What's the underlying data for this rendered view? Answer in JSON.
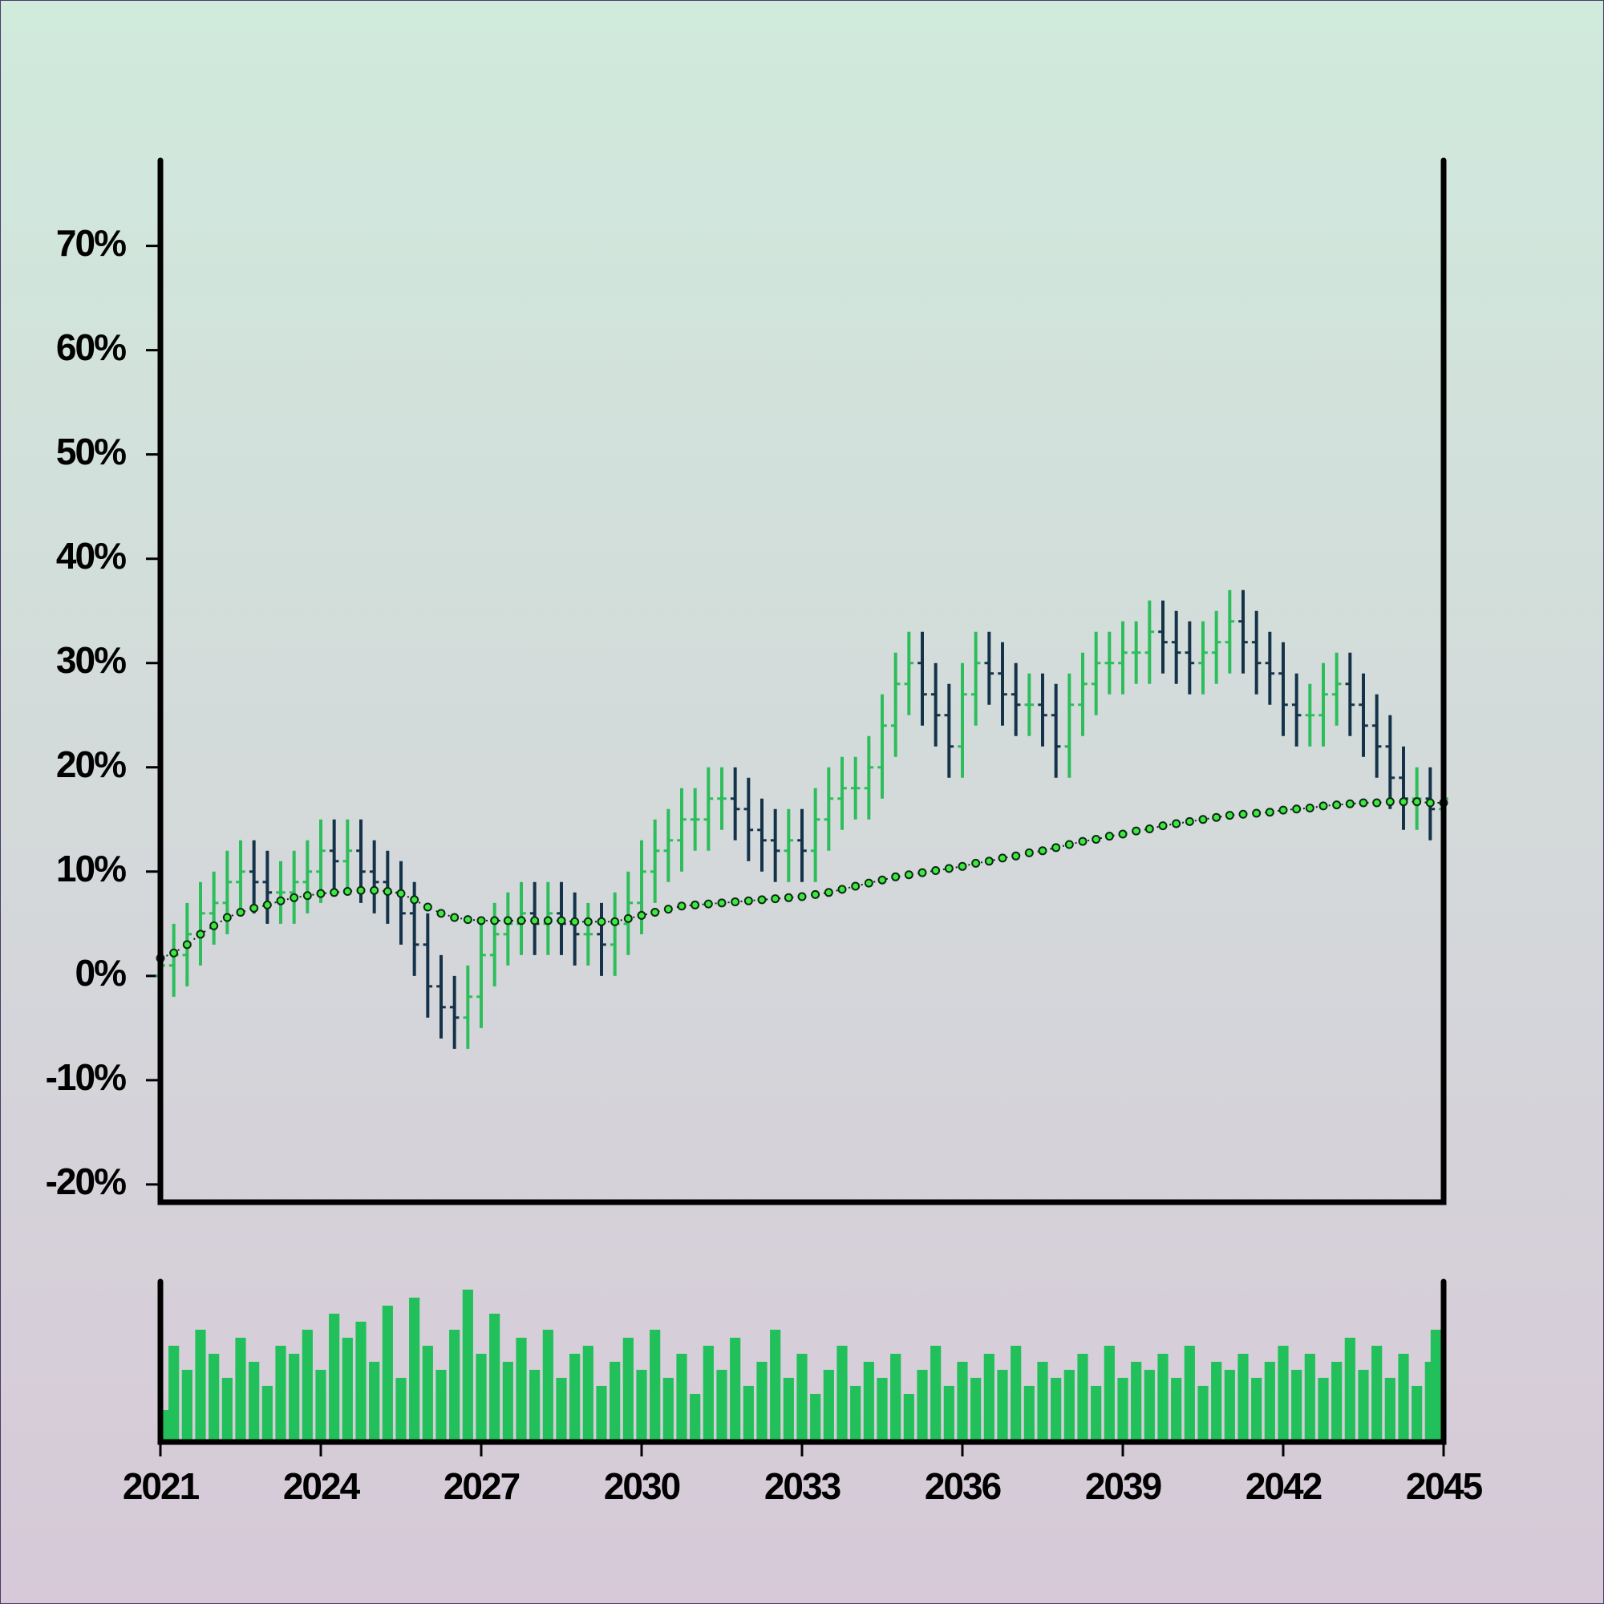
{
  "chart_data": {
    "type": "ohlc",
    "x": [
      2021,
      2021.25,
      2021.5,
      2021.75,
      2022,
      2022.25,
      2022.5,
      2022.75,
      2023,
      2023.25,
      2023.5,
      2023.75,
      2024,
      2024.25,
      2024.5,
      2024.75,
      2025,
      2025.25,
      2025.5,
      2025.75,
      2026,
      2026.25,
      2026.5,
      2026.75,
      2027,
      2027.25,
      2027.5,
      2027.75,
      2028,
      2028.25,
      2028.5,
      2028.75,
      2029,
      2029.25,
      2029.5,
      2029.75,
      2030,
      2030.25,
      2030.5,
      2030.75,
      2031,
      2031.25,
      2031.5,
      2031.75,
      2032,
      2032.25,
      2032.5,
      2032.75,
      2033,
      2033.25,
      2033.5,
      2033.75,
      2034,
      2034.25,
      2034.5,
      2034.75,
      2035,
      2035.25,
      2035.5,
      2035.75,
      2036,
      2036.25,
      2036.5,
      2036.75,
      2037,
      2037.25,
      2037.5,
      2037.75,
      2038,
      2038.25,
      2038.5,
      2038.75,
      2039,
      2039.25,
      2039.5,
      2039.75,
      2040,
      2040.25,
      2040.5,
      2040.75,
      2041,
      2041.25,
      2041.5,
      2041.75,
      2042,
      2042.25,
      2042.5,
      2042.75,
      2043,
      2043.25,
      2043.5,
      2043.75,
      2044,
      2044.25,
      2044.5,
      2044.75,
      2045
    ],
    "open": [
      0,
      1,
      2,
      4,
      6,
      7,
      9,
      10,
      9,
      8,
      8,
      9,
      10,
      12,
      11,
      12,
      10,
      9,
      8,
      6,
      3,
      -1,
      -3,
      -4,
      -2,
      2,
      4,
      5,
      6,
      5,
      6,
      5,
      4,
      4,
      3,
      5,
      7,
      10,
      12,
      13,
      15,
      15,
      17,
      17,
      16,
      14,
      13,
      12,
      13,
      12,
      15,
      17,
      18,
      18,
      20,
      24,
      28,
      30,
      27,
      25,
      22,
      27,
      30,
      29,
      27,
      26,
      26,
      25,
      22,
      26,
      28,
      30,
      30,
      31,
      31,
      33,
      32,
      31,
      30,
      31,
      32,
      34,
      32,
      30,
      29,
      26,
      25,
      25,
      27,
      28,
      26,
      24,
      22,
      19,
      17,
      17,
      16
    ],
    "high": [
      4,
      5,
      7,
      9,
      10,
      12,
      13,
      13,
      12,
      11,
      12,
      13,
      15,
      15,
      15,
      15,
      13,
      12,
      11,
      9,
      6,
      2,
      0,
      1,
      5,
      7,
      8,
      9,
      9,
      9,
      9,
      8,
      7,
      7,
      8,
      10,
      13,
      15,
      16,
      18,
      18,
      20,
      20,
      20,
      19,
      17,
      16,
      16,
      16,
      18,
      20,
      21,
      21,
      23,
      27,
      31,
      33,
      33,
      30,
      28,
      30,
      33,
      33,
      32,
      30,
      29,
      29,
      28,
      29,
      31,
      33,
      33,
      34,
      34,
      36,
      36,
      35,
      34,
      34,
      35,
      37,
      37,
      35,
      33,
      32,
      29,
      28,
      30,
      31,
      31,
      29,
      27,
      25,
      22,
      20,
      20,
      20
    ],
    "low": [
      -3,
      -2,
      -1,
      1,
      3,
      4,
      6,
      6,
      5,
      5,
      5,
      6,
      7,
      8,
      8,
      7,
      6,
      5,
      3,
      0,
      -4,
      -6,
      -7,
      -7,
      -5,
      -1,
      1,
      2,
      2,
      2,
      2,
      1,
      1,
      0,
      0,
      2,
      4,
      7,
      9,
      10,
      12,
      12,
      14,
      13,
      11,
      10,
      9,
      9,
      9,
      9,
      12,
      14,
      15,
      15,
      17,
      21,
      25,
      24,
      22,
      19,
      19,
      24,
      26,
      24,
      23,
      23,
      22,
      19,
      19,
      23,
      25,
      27,
      27,
      28,
      28,
      29,
      28,
      27,
      27,
      28,
      29,
      29,
      27,
      26,
      23,
      22,
      22,
      22,
      24,
      23,
      21,
      19,
      16,
      14,
      14,
      13,
      13
    ],
    "close": [
      1,
      2,
      4,
      6,
      7,
      9,
      10,
      9,
      8,
      8,
      9,
      10,
      12,
      11,
      12,
      10,
      9,
      8,
      6,
      3,
      -1,
      -3,
      -4,
      -2,
      2,
      4,
      5,
      6,
      5,
      6,
      5,
      4,
      4,
      3,
      5,
      7,
      10,
      12,
      13,
      15,
      15,
      17,
      17,
      16,
      14,
      13,
      12,
      13,
      12,
      15,
      17,
      18,
      18,
      20,
      24,
      28,
      30,
      27,
      25,
      22,
      27,
      30,
      29,
      27,
      26,
      26,
      25,
      22,
      26,
      28,
      30,
      30,
      31,
      31,
      33,
      32,
      31,
      30,
      31,
      32,
      34,
      32,
      30,
      29,
      26,
      25,
      25,
      27,
      28,
      26,
      24,
      22,
      19,
      17,
      17,
      16,
      17
    ],
    "ma": [
      1.7,
      2.2,
      3.0,
      4.0,
      4.8,
      5.6,
      6.1,
      6.5,
      6.8,
      7.2,
      7.5,
      7.7,
      7.9,
      8.0,
      8.1,
      8.2,
      8.2,
      8.1,
      7.9,
      7.3,
      6.6,
      6.0,
      5.6,
      5.4,
      5.3,
      5.3,
      5.3,
      5.3,
      5.3,
      5.3,
      5.3,
      5.2,
      5.2,
      5.2,
      5.2,
      5.5,
      5.8,
      6.1,
      6.4,
      6.7,
      6.8,
      6.9,
      7.0,
      7.1,
      7.2,
      7.3,
      7.4,
      7.5,
      7.6,
      7.8,
      8.0,
      8.3,
      8.6,
      8.9,
      9.2,
      9.5,
      9.7,
      9.9,
      10.1,
      10.3,
      10.5,
      10.8,
      11.0,
      11.3,
      11.5,
      11.8,
      12.0,
      12.3,
      12.6,
      12.9,
      13.1,
      13.4,
      13.6,
      13.9,
      14.1,
      14.4,
      14.6,
      14.8,
      15.0,
      15.2,
      15.4,
      15.5,
      15.6,
      15.7,
      15.9,
      16.0,
      16.1,
      16.3,
      16.4,
      16.5,
      16.6,
      16.6,
      16.7,
      16.7,
      16.7,
      16.6,
      16.6
    ],
    "volume": [
      20,
      60,
      45,
      70,
      55,
      40,
      65,
      50,
      35,
      60,
      55,
      70,
      45,
      80,
      65,
      75,
      50,
      85,
      40,
      90,
      60,
      45,
      70,
      95,
      55,
      80,
      50,
      65,
      45,
      70,
      40,
      55,
      60,
      35,
      50,
      65,
      45,
      70,
      40,
      55,
      30,
      60,
      45,
      65,
      35,
      50,
      70,
      40,
      55,
      30,
      45,
      60,
      35,
      50,
      40,
      55,
      30,
      45,
      60,
      35,
      50,
      40,
      55,
      45,
      60,
      35,
      50,
      40,
      45,
      55,
      35,
      60,
      40,
      50,
      45,
      55,
      40,
      60,
      35,
      50,
      45,
      55,
      40,
      50,
      60,
      45,
      55,
      40,
      50,
      65,
      45,
      60,
      40,
      55,
      35,
      50,
      70
    ],
    "up_color": "#2dbd5a",
    "down_color": "#14334a",
    "ma_color": "#3ee83e",
    "volume_color": "#22c05a",
    "xlim": [
      2021,
      2045
    ],
    "xticks": [
      2021,
      2024,
      2027,
      2030,
      2033,
      2036,
      2039,
      2042,
      2045
    ],
    "ylim": [
      -21.7,
      78.2
    ],
    "yticks": [
      {
        "value": -20,
        "label": "-20%"
      },
      {
        "value": -10,
        "label": "-10%"
      },
      {
        "value": 0,
        "label": "0%"
      },
      {
        "value": 10,
        "label": "10%"
      },
      {
        "value": 20,
        "label": "20%"
      },
      {
        "value": 30,
        "label": "30%"
      },
      {
        "value": 40,
        "label": "40%"
      },
      {
        "value": 50,
        "label": "50%"
      },
      {
        "value": 60,
        "label": "60%"
      },
      {
        "value": 70,
        "label": "70%"
      }
    ],
    "volume_ylim": [
      0,
      100
    ]
  }
}
